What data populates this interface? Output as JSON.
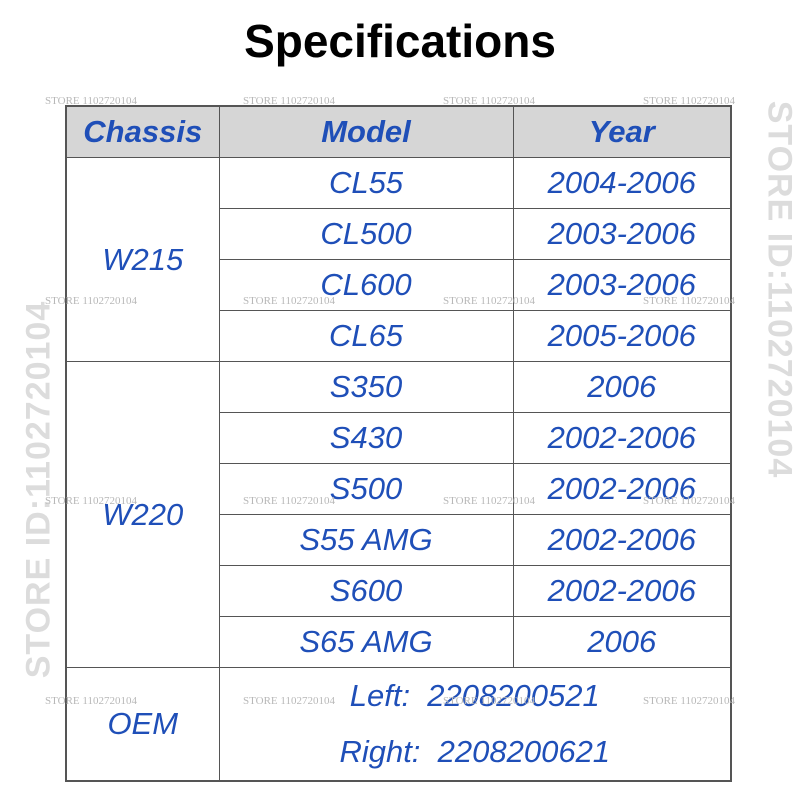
{
  "title": "Specifications",
  "watermark": {
    "small": "STORE 1102720104",
    "vertical": "STORE ID:1102720104"
  },
  "table": {
    "header": [
      "Chassis",
      "Model",
      "Year"
    ],
    "groups": [
      {
        "chassis": "W215",
        "rows": [
          [
            "CL55",
            "2004-2006"
          ],
          [
            "CL500",
            "2003-2006"
          ],
          [
            "CL600",
            "2003-2006"
          ],
          [
            "CL65",
            "2005-2006"
          ]
        ]
      },
      {
        "chassis": "W220",
        "rows": [
          [
            "S350",
            "2006"
          ],
          [
            "S430",
            "2002-2006"
          ],
          [
            "S500",
            "2002-2006"
          ],
          [
            "S55 AMG",
            "2002-2006"
          ],
          [
            "S600",
            "2002-2006"
          ],
          [
            "S65 AMG",
            "2006"
          ]
        ]
      }
    ],
    "oem": {
      "label": "OEM",
      "lines": [
        "Left:  2208200521",
        "Right:  2208200621"
      ]
    }
  }
}
